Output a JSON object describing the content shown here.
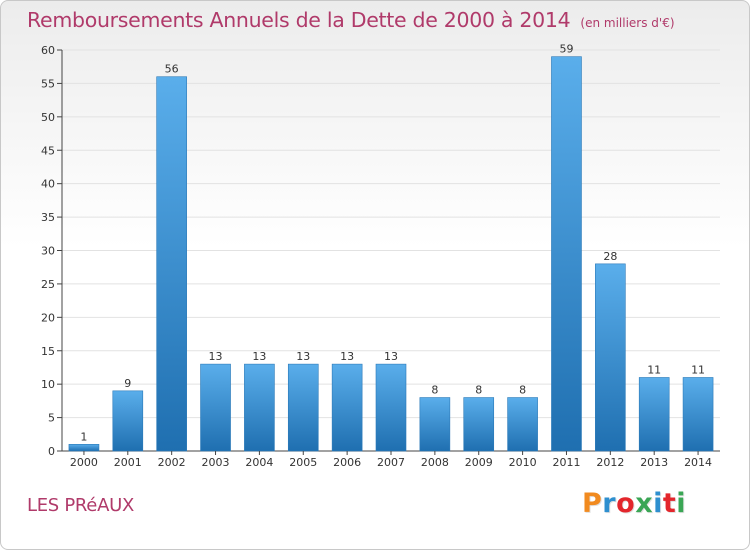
{
  "header": {
    "title": "Remboursements Annuels de la Dette de 2000 à 2014",
    "subtitle": "(en milliers d'€)"
  },
  "footer": {
    "commune": "LES PRéAUX",
    "logo": {
      "letters": [
        "P",
        "r",
        "o",
        "x",
        "i",
        "t",
        "i"
      ],
      "colors": [
        "#f18a1f",
        "#2e8fcf",
        "#e3262c",
        "#3aa655",
        "#2e8fcf",
        "#e3262c",
        "#3aa655"
      ]
    }
  },
  "colors": {
    "bar_top": "#5aaeeb",
    "bar_bottom": "#1f6fb0",
    "grid": "#e2e2e2",
    "axis": "#444444",
    "title": "#b03a6a"
  },
  "chart_data": {
    "type": "bar",
    "title": "Remboursements Annuels de la Dette de 2000 à 2014",
    "subtitle": "(en milliers d'€)",
    "xlabel": "",
    "ylabel": "",
    "categories": [
      "2000",
      "2001",
      "2002",
      "2003",
      "2004",
      "2005",
      "2006",
      "2007",
      "2008",
      "2009",
      "2010",
      "2011",
      "2012",
      "2013",
      "2014"
    ],
    "values": [
      1,
      9,
      56,
      13,
      13,
      13,
      13,
      13,
      8,
      8,
      8,
      59,
      28,
      11,
      11
    ],
    "ylim": [
      0,
      60
    ],
    "yticks": [
      0,
      5,
      10,
      15,
      20,
      25,
      30,
      35,
      40,
      45,
      50,
      55,
      60
    ],
    "grid": true,
    "legend": "none"
  }
}
